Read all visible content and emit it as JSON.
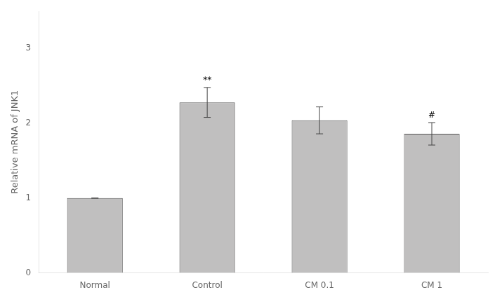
{
  "chart_data": {
    "type": "bar",
    "categories": [
      "Normal",
      "Control",
      "CM 0.1",
      "CM 1"
    ],
    "values": [
      1.0,
      2.28,
      2.04,
      1.86
    ],
    "errors": [
      0.0,
      0.2,
      0.18,
      0.15
    ],
    "color": "#c0bfbf",
    "ylabel": "Relative mRNA of JNK1",
    "ylim": [
      0,
      3.5
    ],
    "yticks": [
      0,
      1,
      2,
      3
    ],
    "grid": false,
    "annotations": [
      {
        "x": "Control",
        "text": "**"
      },
      {
        "x": "CM 1",
        "text": "#"
      }
    ]
  }
}
